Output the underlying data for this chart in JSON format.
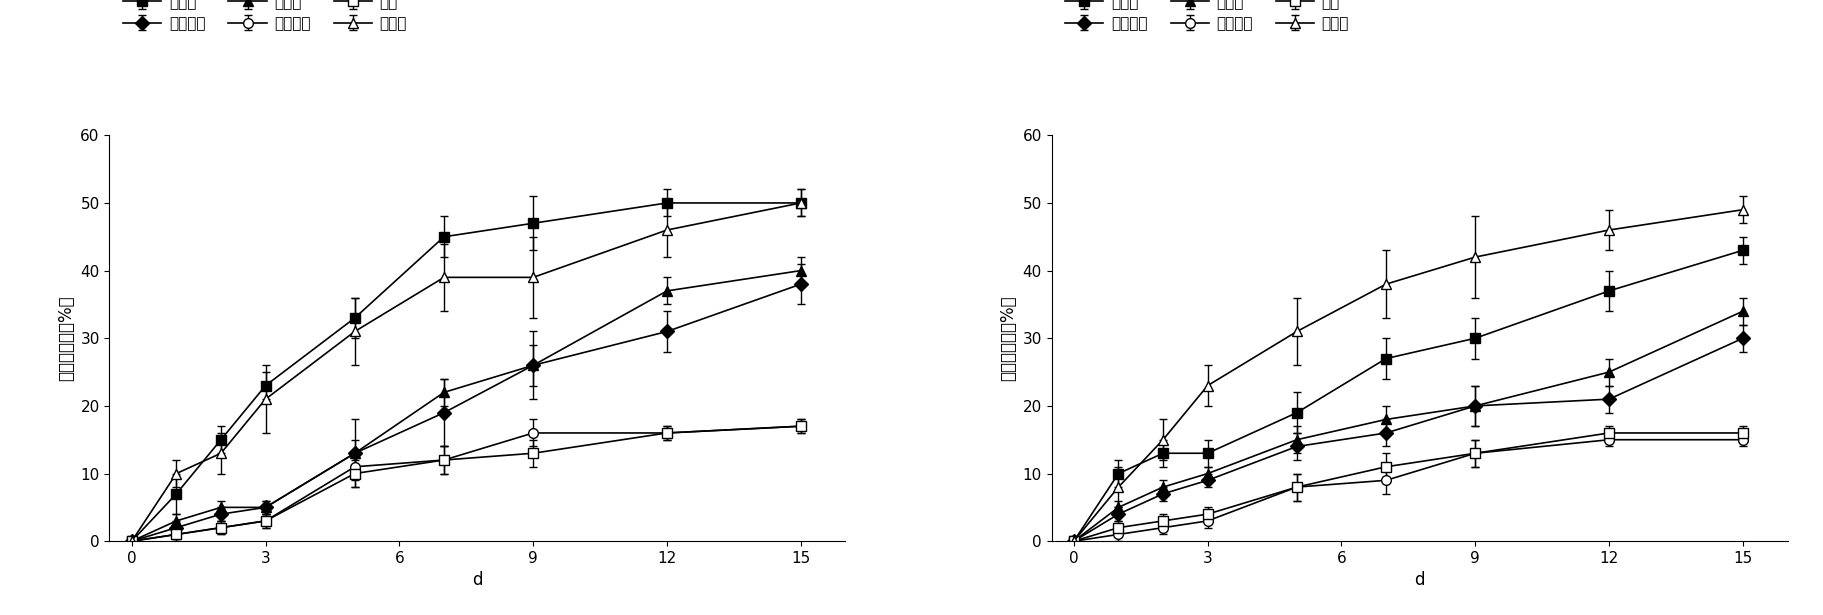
{
  "x_ticks": [
    0,
    1,
    2,
    3,
    5,
    7,
    9,
    12,
    15
  ],
  "xlabel": "d",
  "ylim": [
    0,
    60
  ],
  "yticks": [
    0,
    10,
    20,
    30,
    40,
    50,
    60
  ],
  "left_ylabel": "总氮去除率（%）",
  "right_ylabel": "总磷去除率（%）",
  "series": [
    {
      "label": "再力花",
      "marker": "s",
      "filled": true
    },
    {
      "label": "常绿鸢尾",
      "marker": "D",
      "filled": true
    },
    {
      "label": "美人蕉",
      "marker": "^",
      "filled": true
    },
    {
      "label": "黄花水龙",
      "marker": "o",
      "filled": false,
      "diamond": true
    },
    {
      "label": "聚草",
      "marker": "s",
      "filled": false
    },
    {
      "label": "水浮莲",
      "marker": "^",
      "filled": false
    }
  ],
  "left_data": {
    "再力花": {
      "y": [
        0,
        7,
        15,
        23,
        33,
        45,
        47,
        50,
        50
      ],
      "yerr": [
        0,
        3,
        2,
        2,
        3,
        3,
        4,
        2,
        2
      ]
    },
    "常绿鸢尾": {
      "y": [
        0,
        2,
        4,
        5,
        13,
        19,
        26,
        31,
        38
      ],
      "yerr": [
        0,
        1,
        1,
        1,
        5,
        5,
        5,
        3,
        3
      ]
    },
    "美人蕉": {
      "y": [
        0,
        3,
        5,
        5,
        13,
        22,
        26,
        37,
        40
      ],
      "yerr": [
        0,
        1,
        1,
        1,
        2,
        2,
        3,
        2,
        2
      ]
    },
    "黄花水龙": {
      "y": [
        0,
        1,
        2,
        3,
        11,
        12,
        16,
        16,
        17
      ],
      "yerr": [
        0,
        1,
        1,
        1,
        2,
        2,
        2,
        1,
        1
      ]
    },
    "聚草": {
      "y": [
        0,
        1,
        2,
        3,
        10,
        12,
        13,
        16,
        17
      ],
      "yerr": [
        0,
        1,
        1,
        1,
        2,
        2,
        2,
        1,
        1
      ]
    },
    "水浮莲": {
      "y": [
        0,
        10,
        13,
        21,
        31,
        39,
        39,
        46,
        50
      ],
      "yerr": [
        0,
        2,
        3,
        5,
        5,
        5,
        6,
        4,
        2
      ]
    }
  },
  "right_data": {
    "再力花": {
      "y": [
        0,
        10,
        13,
        13,
        19,
        27,
        30,
        37,
        43
      ],
      "yerr": [
        0,
        2,
        2,
        2,
        3,
        3,
        3,
        3,
        2
      ]
    },
    "常绿鸢尾": {
      "y": [
        0,
        4,
        7,
        9,
        14,
        16,
        20,
        21,
        30
      ],
      "yerr": [
        0,
        1,
        1,
        1,
        2,
        2,
        3,
        2,
        2
      ]
    },
    "美人蕉": {
      "y": [
        0,
        5,
        8,
        10,
        15,
        18,
        20,
        25,
        34
      ],
      "yerr": [
        0,
        1,
        1,
        1,
        2,
        2,
        3,
        2,
        2
      ]
    },
    "黄花水龙": {
      "y": [
        0,
        1,
        2,
        3,
        8,
        9,
        13,
        15,
        15
      ],
      "yerr": [
        0,
        1,
        1,
        1,
        2,
        2,
        2,
        1,
        1
      ]
    },
    "聚草": {
      "y": [
        0,
        2,
        3,
        4,
        8,
        11,
        13,
        16,
        16
      ],
      "yerr": [
        0,
        1,
        1,
        1,
        2,
        2,
        2,
        1,
        1
      ]
    },
    "水浮莲": {
      "y": [
        0,
        8,
        15,
        23,
        31,
        38,
        42,
        46,
        49
      ],
      "yerr": [
        0,
        3,
        3,
        3,
        5,
        5,
        6,
        3,
        2
      ]
    }
  },
  "legend_order": [
    "再力花",
    "常绿鸢尾",
    "美人蕉",
    "黄花水龙",
    "聚草",
    "水浮莲"
  ],
  "legend_cols": 3,
  "legend_rows": 2
}
